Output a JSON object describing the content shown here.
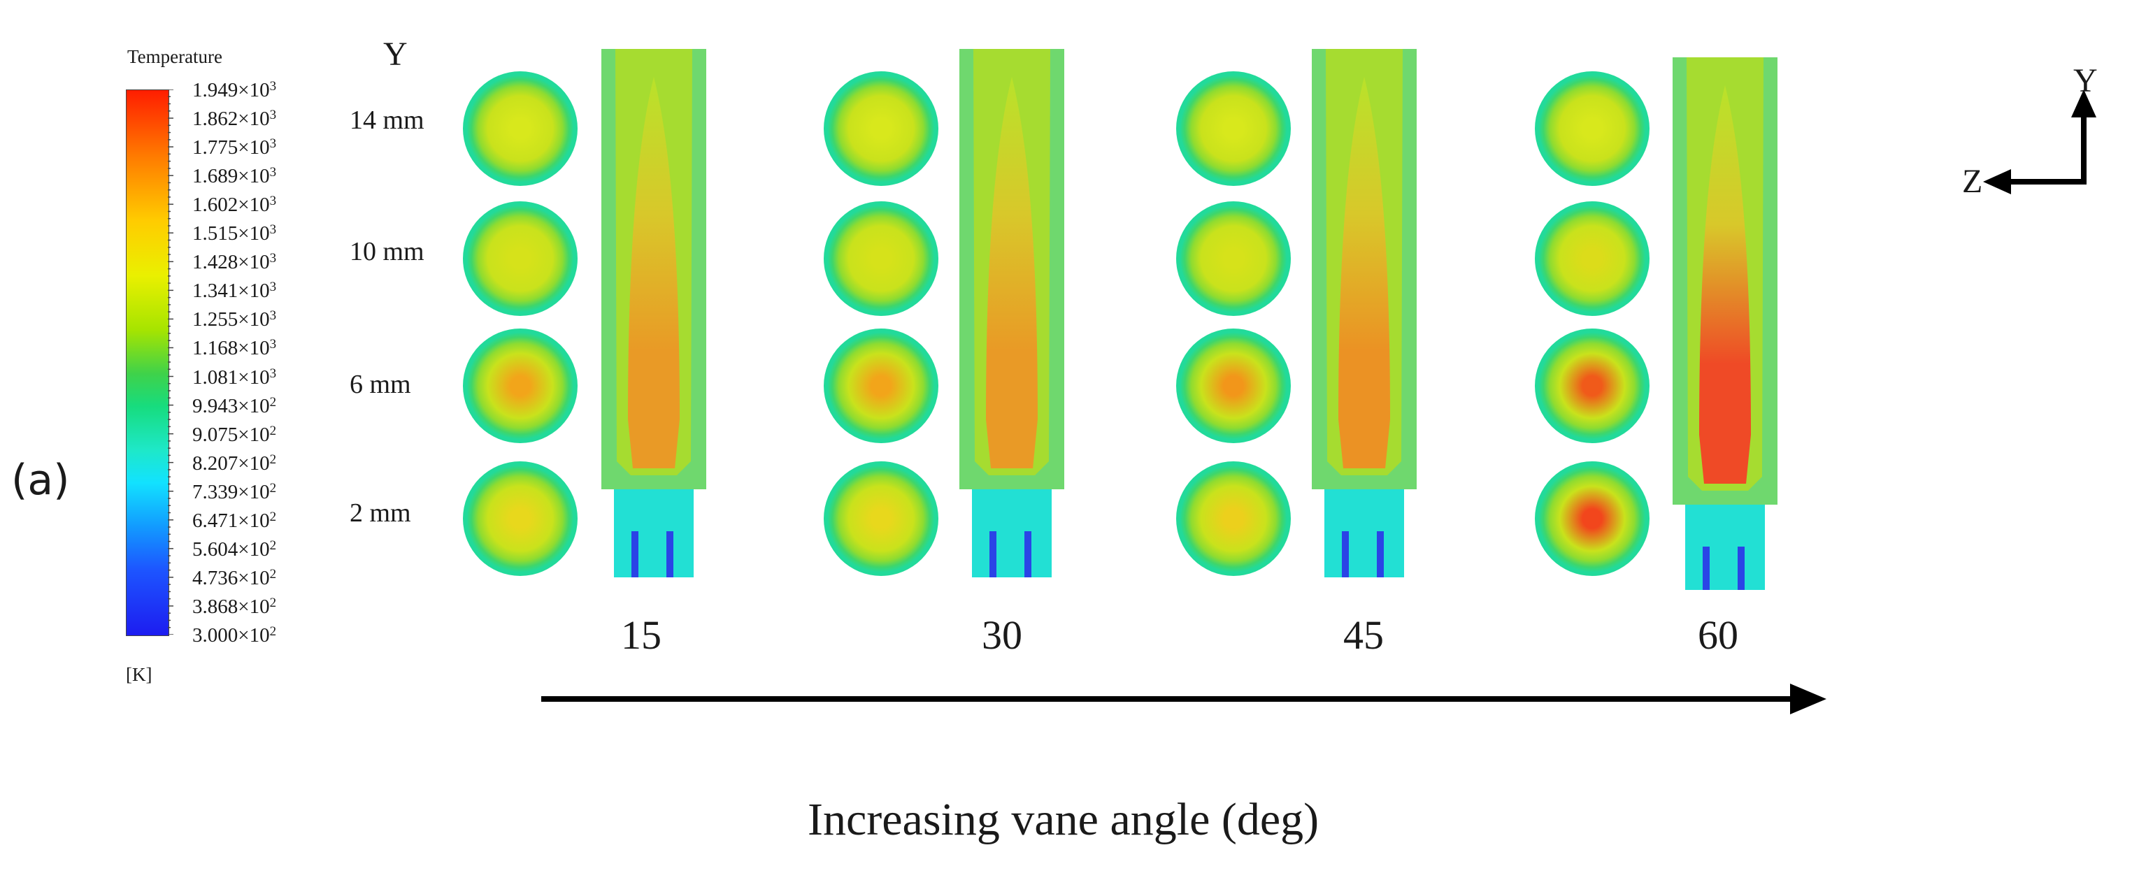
{
  "panel_label": "(a)",
  "legend": {
    "title": "Temperature",
    "unit": "[K]",
    "ticks": [
      {
        "mantissa": "1.949×10",
        "exp": "3"
      },
      {
        "mantissa": "1.862×10",
        "exp": "3"
      },
      {
        "mantissa": "1.775×10",
        "exp": "3"
      },
      {
        "mantissa": "1.689×10",
        "exp": "3"
      },
      {
        "mantissa": "1.602×10",
        "exp": "3"
      },
      {
        "mantissa": "1.515×10",
        "exp": "3"
      },
      {
        "mantissa": "1.428×10",
        "exp": "3"
      },
      {
        "mantissa": "1.341×10",
        "exp": "3"
      },
      {
        "mantissa": "1.255×10",
        "exp": "3"
      },
      {
        "mantissa": "1.168×10",
        "exp": "3"
      },
      {
        "mantissa": "1.081×10",
        "exp": "3"
      },
      {
        "mantissa": "9.943×10",
        "exp": "2"
      },
      {
        "mantissa": "9.075×10",
        "exp": "2"
      },
      {
        "mantissa": "8.207×10",
        "exp": "2"
      },
      {
        "mantissa": "7.339×10",
        "exp": "2"
      },
      {
        "mantissa": "6.471×10",
        "exp": "2"
      },
      {
        "mantissa": "5.604×10",
        "exp": "2"
      },
      {
        "mantissa": "4.736×10",
        "exp": "2"
      },
      {
        "mantissa": "3.868×10",
        "exp": "2"
      },
      {
        "mantissa": "3.000×10",
        "exp": "2"
      }
    ],
    "colors_top_to_bottom": [
      "#ff1d00",
      "#ff7a00",
      "#ffcc00",
      "#eaf000",
      "#a6e400",
      "#3fd24a",
      "#17dc7e",
      "#1ee8c8",
      "#12e2ff",
      "#129bff",
      "#1d55ff",
      "#1d1cf0"
    ]
  },
  "y_axis_head": "Y",
  "row_labels": [
    "14 mm",
    "10 mm",
    "6 mm",
    "2 mm"
  ],
  "angles": [
    {
      "label": "15",
      "core_colors": [
        "#d8e81c",
        "#d6e21a",
        "#f2a51a",
        "#e8d81c"
      ],
      "flame_core": "#e99a26"
    },
    {
      "label": "30",
      "core_colors": [
        "#d8e81c",
        "#d6e21a",
        "#f2a51a",
        "#e8d81c"
      ],
      "flame_core": "#e99a26"
    },
    {
      "label": "45",
      "core_colors": [
        "#d8e81c",
        "#d6e21a",
        "#f2961a",
        "#ecd01c"
      ],
      "flame_core": "#eb9224"
    },
    {
      "label": "60",
      "core_colors": [
        "#d8e81c",
        "#dcdc1a",
        "#f05a1a",
        "#f2461c"
      ],
      "flame_core": "#ef4a26"
    }
  ],
  "x_axis_label": "Increasing vane angle (deg)",
  "triad": {
    "up": "Y",
    "left": "Z"
  }
}
